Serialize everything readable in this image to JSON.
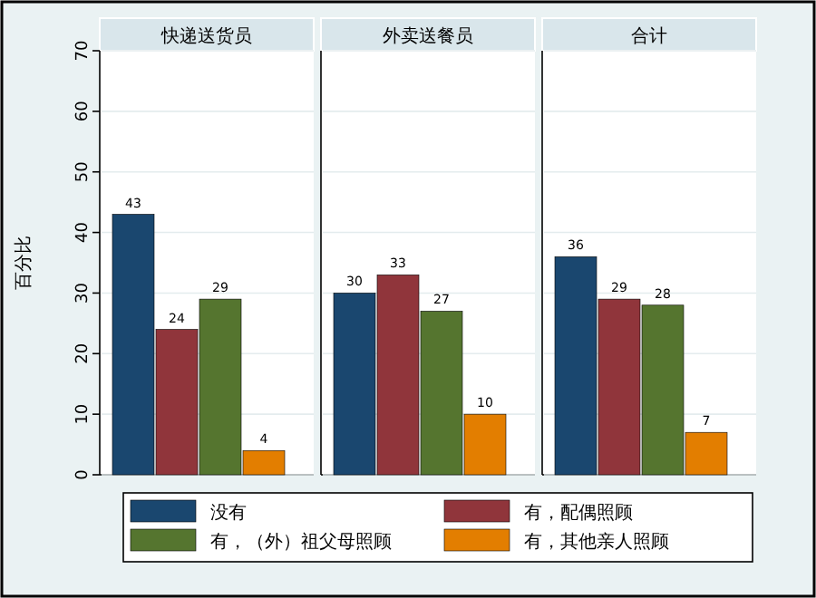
{
  "chart_data": {
    "type": "bar",
    "ylabel": "百分比",
    "categories": [
      "快递送货员",
      "外卖送餐员",
      "合计"
    ],
    "ylim": [
      0,
      70
    ],
    "yticks": [
      0,
      10,
      20,
      30,
      40,
      50,
      60,
      70
    ],
    "data_labels": true,
    "grid": "y",
    "legend": "bottom",
    "series": [
      {
        "name": "没有",
        "color": "#1a476f",
        "values": [
          43,
          30,
          36
        ]
      },
      {
        "name": "有，配偶照顾",
        "color": "#90353b",
        "values": [
          24,
          33,
          29
        ]
      },
      {
        "name": "有，（外）祖父母照顾",
        "color": "#55752f",
        "values": [
          29,
          27,
          28
        ]
      },
      {
        "name": "有，其他亲人照顾",
        "color": "#e37e00",
        "values": [
          4,
          10,
          7
        ]
      }
    ]
  }
}
